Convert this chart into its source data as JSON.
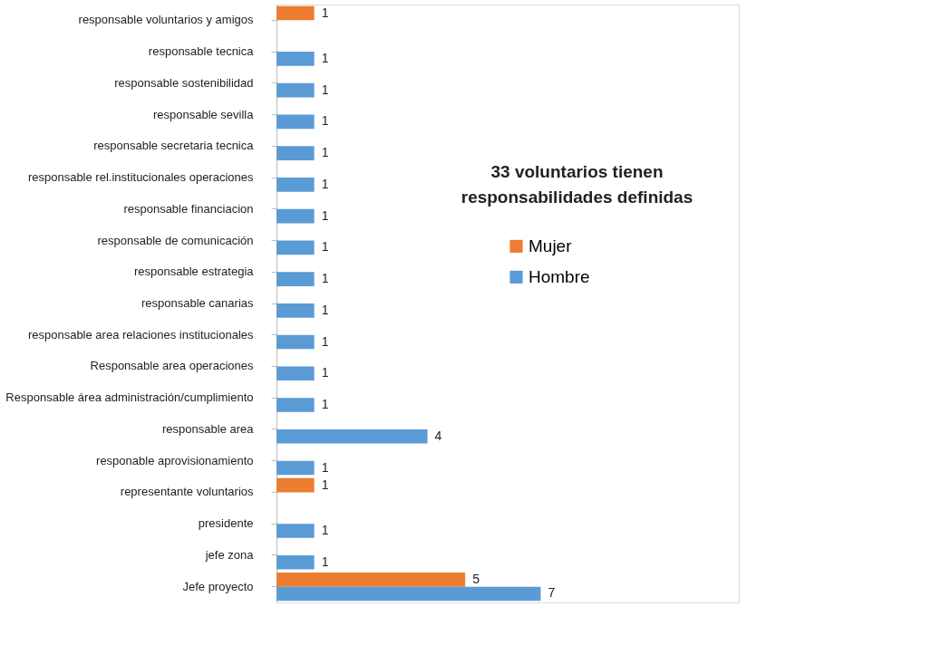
{
  "chart_data": {
    "type": "bar",
    "orientation": "horizontal",
    "title": "33 voluntarios tienen responsabilidades definidas",
    "categories": [
      "responsable voluntarios y amigos",
      "responsable tecnica",
      "responsable sostenibilidad",
      "responsable sevilla",
      "responsable secretaria tecnica",
      "responsable rel.institucionales operaciones",
      "responsable financiacion",
      "responsable de comunicación",
      "responsable estrategia",
      "responsable canarias",
      "responsable area relaciones institucionales",
      "Responsable area operaciones",
      "Responsable área administración/cumplimiento",
      "responsable area",
      "responable aprovisionamiento",
      "representante voluntarios",
      "presidente",
      "jefe zona",
      "Jefe proyecto"
    ],
    "series": [
      {
        "name": "Mujer",
        "color": "#ed7d31",
        "values": [
          1,
          null,
          null,
          null,
          null,
          null,
          null,
          null,
          null,
          null,
          null,
          null,
          null,
          null,
          null,
          1,
          null,
          null,
          5
        ]
      },
      {
        "name": "Hombre",
        "color": "#5b9bd5",
        "values": [
          null,
          1,
          1,
          1,
          1,
          1,
          1,
          1,
          1,
          1,
          1,
          1,
          1,
          4,
          1,
          null,
          1,
          1,
          7
        ]
      }
    ],
    "data_labels": true,
    "legend": "right"
  }
}
